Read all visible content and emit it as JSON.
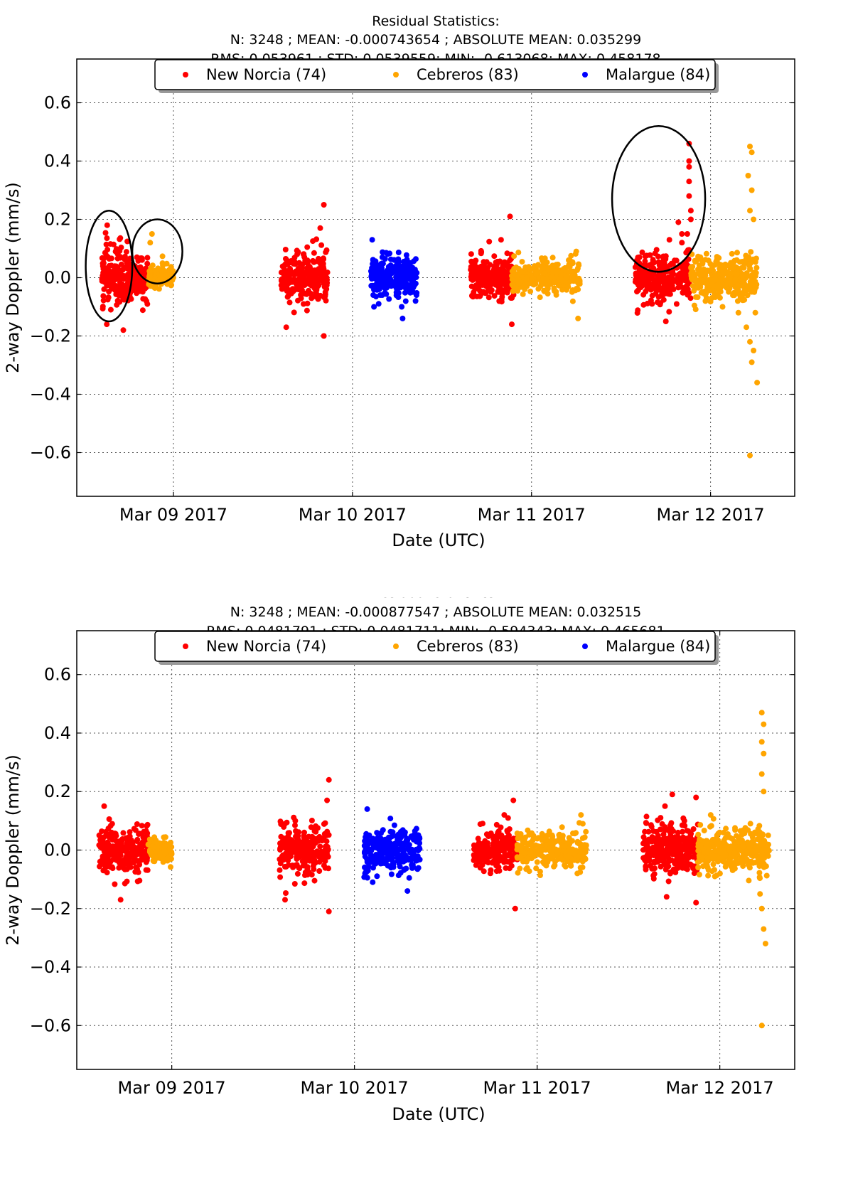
{
  "chart_data": [
    {
      "type": "scatter",
      "title_lines": [
        "Residual Statistics:",
        "N: 3248 ; MEAN: -0.000743654 ; ABSOLUTE MEAN: 0.035299",
        "RMS: 0.053961 ; STD: 0.0539559; MIN: -0.613068; MAX: 0.458178"
      ],
      "xlabel": "Date (UTC)",
      "ylabel": "2-way Doppler (mm/s)",
      "xlim": [
        8.46,
        12.47
      ],
      "ylim": [
        -0.75,
        0.75
      ],
      "x_ticks": [
        {
          "value": 9.0,
          "label": "Mar 09 2017"
        },
        {
          "value": 10.0,
          "label": "Mar 10 2017"
        },
        {
          "value": 11.0,
          "label": "Mar 11 2017"
        },
        {
          "value": 12.0,
          "label": "Mar 12 2017"
        }
      ],
      "y_ticks": [
        {
          "value": 0.6,
          "label": "0.6"
        },
        {
          "value": 0.4,
          "label": "0.4"
        },
        {
          "value": 0.2,
          "label": "0.2"
        },
        {
          "value": 0.0,
          "label": "0.0"
        },
        {
          "value": -0.2,
          "label": "−0.2"
        },
        {
          "value": -0.4,
          "label": "−0.4"
        },
        {
          "value": -0.6,
          "label": "−0.6"
        }
      ],
      "grid": true,
      "legend_position": "top-center",
      "series": [
        {
          "name": "New Norcia (74)",
          "color": "#ff0000",
          "clusters": [
            {
              "x0": 8.6,
              "x1": 8.77,
              "std": 0.05,
              "n": 170
            },
            {
              "x0": 8.77,
              "x1": 8.86,
              "std": 0.035,
              "n": 90
            },
            {
              "x0": 9.6,
              "x1": 9.86,
              "std": 0.045,
              "n": 230
            },
            {
              "x0": 10.66,
              "x1": 10.9,
              "std": 0.038,
              "n": 220
            },
            {
              "x0": 11.58,
              "x1": 11.89,
              "std": 0.045,
              "n": 290
            }
          ],
          "outliers": [
            {
              "x": 8.63,
              "y": 0.18
            },
            {
              "x": 8.72,
              "y": -0.18
            },
            {
              "x": 8.65,
              "y": -0.11
            },
            {
              "x": 9.84,
              "y": 0.25
            },
            {
              "x": 9.82,
              "y": 0.17
            },
            {
              "x": 9.63,
              "y": -0.17
            },
            {
              "x": 9.84,
              "y": -0.2
            },
            {
              "x": 10.88,
              "y": 0.21
            },
            {
              "x": 10.83,
              "y": 0.13
            },
            {
              "x": 10.89,
              "y": -0.16
            },
            {
              "x": 11.88,
              "y": 0.46
            },
            {
              "x": 11.88,
              "y": 0.4
            },
            {
              "x": 11.88,
              "y": 0.38
            },
            {
              "x": 11.88,
              "y": 0.33
            },
            {
              "x": 11.89,
              "y": 0.23
            },
            {
              "x": 11.89,
              "y": 0.2
            },
            {
              "x": 11.87,
              "y": 0.15
            },
            {
              "x": 11.82,
              "y": 0.19
            },
            {
              "x": 11.77,
              "y": 0.13
            },
            {
              "x": 11.84,
              "y": 0.15
            },
            {
              "x": 11.75,
              "y": -0.15
            },
            {
              "x": 11.88,
              "y": 0.28
            },
            {
              "x": 11.84,
              "y": 0.12
            }
          ]
        },
        {
          "name": "Cebreros (83)",
          "color": "#ffa500",
          "clusters": [
            {
              "x0": 8.86,
              "x1": 9.0,
              "std": 0.02,
              "n": 130
            },
            {
              "x0": 10.89,
              "x1": 11.27,
              "std": 0.03,
              "n": 280
            },
            {
              "x0": 11.89,
              "x1": 12.26,
              "std": 0.04,
              "n": 320
            }
          ],
          "outliers": [
            {
              "x": 8.88,
              "y": 0.15
            },
            {
              "x": 8.87,
              "y": 0.12
            },
            {
              "x": 11.26,
              "y": -0.14
            },
            {
              "x": 11.25,
              "y": 0.09
            },
            {
              "x": 12.22,
              "y": 0.45
            },
            {
              "x": 12.23,
              "y": 0.43
            },
            {
              "x": 12.21,
              "y": 0.35
            },
            {
              "x": 12.23,
              "y": 0.3
            },
            {
              "x": 12.22,
              "y": 0.23
            },
            {
              "x": 12.24,
              "y": 0.2
            },
            {
              "x": 12.22,
              "y": -0.22
            },
            {
              "x": 12.24,
              "y": -0.25
            },
            {
              "x": 12.23,
              "y": -0.29
            },
            {
              "x": 12.26,
              "y": -0.36
            },
            {
              "x": 12.22,
              "y": -0.61
            },
            {
              "x": 12.2,
              "y": -0.17
            },
            {
              "x": 12.25,
              "y": -0.12
            }
          ]
        },
        {
          "name": "Malargue (84)",
          "color": "#0000ff",
          "clusters": [
            {
              "x0": 10.1,
              "x1": 10.36,
              "std": 0.038,
              "n": 240
            }
          ],
          "outliers": [
            {
              "x": 10.11,
              "y": 0.13
            },
            {
              "x": 10.28,
              "y": -0.14
            },
            {
              "x": 10.12,
              "y": -0.1
            }
          ]
        }
      ],
      "annotations": [
        {
          "type": "ellipse",
          "cx": 8.64,
          "cy": 0.04,
          "rx": 0.13,
          "ry": 0.19
        },
        {
          "type": "ellipse",
          "cx": 8.91,
          "cy": 0.09,
          "rx": 0.14,
          "ry": 0.11
        },
        {
          "type": "ellipse",
          "cx": 11.71,
          "cy": 0.27,
          "rx": 0.26,
          "ry": 0.25
        }
      ]
    },
    {
      "type": "scatter",
      "title_lines": [
        "Residual Statistics:",
        "N: 3248 ; MEAN: -0.000877547 ; ABSOLUTE MEAN: 0.032515",
        "RMS: 0.0481791 ; STD: 0.0481711; MIN: -0.594343; MAX: 0.465681"
      ],
      "xlabel": "Date (UTC)",
      "ylabel": "2-way Doppler (mm/s)",
      "xlim": [
        8.48,
        12.41
      ],
      "ylim": [
        -0.75,
        0.75
      ],
      "x_ticks": [
        {
          "value": 9.0,
          "label": "Mar 09 2017"
        },
        {
          "value": 10.0,
          "label": "Mar 10 2017"
        },
        {
          "value": 11.0,
          "label": "Mar 11 2017"
        },
        {
          "value": 12.0,
          "label": "Mar 12 2017"
        }
      ],
      "y_ticks": [
        {
          "value": 0.6,
          "label": "0.6"
        },
        {
          "value": 0.4,
          "label": "0.4"
        },
        {
          "value": 0.2,
          "label": "0.2"
        },
        {
          "value": 0.0,
          "label": "0.0"
        },
        {
          "value": -0.2,
          "label": "−0.2"
        },
        {
          "value": -0.4,
          "label": "−0.4"
        },
        {
          "value": -0.6,
          "label": "−0.6"
        }
      ],
      "grid": true,
      "legend_position": "top-center",
      "series": [
        {
          "name": "New Norcia (74)",
          "color": "#ff0000",
          "clusters": [
            {
              "x0": 8.6,
              "x1": 8.87,
              "std": 0.04,
              "n": 240
            },
            {
              "x0": 9.59,
              "x1": 9.86,
              "std": 0.042,
              "n": 230
            },
            {
              "x0": 10.65,
              "x1": 10.9,
              "std": 0.035,
              "n": 220
            },
            {
              "x0": 11.58,
              "x1": 11.88,
              "std": 0.042,
              "n": 280
            }
          ],
          "outliers": [
            {
              "x": 8.63,
              "y": 0.15
            },
            {
              "x": 8.72,
              "y": -0.17
            },
            {
              "x": 9.86,
              "y": 0.24
            },
            {
              "x": 9.85,
              "y": 0.17
            },
            {
              "x": 9.62,
              "y": -0.17
            },
            {
              "x": 9.86,
              "y": -0.21
            },
            {
              "x": 10.87,
              "y": 0.17
            },
            {
              "x": 10.88,
              "y": -0.2
            },
            {
              "x": 10.82,
              "y": 0.12
            },
            {
              "x": 11.74,
              "y": 0.19
            },
            {
              "x": 11.87,
              "y": 0.18
            },
            {
              "x": 11.87,
              "y": -0.18
            },
            {
              "x": 11.7,
              "y": 0.15
            }
          ]
        },
        {
          "name": "Cebreros (83)",
          "color": "#ffa500",
          "clusters": [
            {
              "x0": 8.87,
              "x1": 9.0,
              "std": 0.018,
              "n": 130
            },
            {
              "x0": 10.89,
              "x1": 11.27,
              "std": 0.03,
              "n": 270
            },
            {
              "x0": 11.88,
              "x1": 12.27,
              "std": 0.038,
              "n": 320
            }
          ],
          "outliers": [
            {
              "x": 11.24,
              "y": 0.12
            },
            {
              "x": 11.25,
              "y": 0.09
            },
            {
              "x": 11.22,
              "y": -0.08
            },
            {
              "x": 12.23,
              "y": 0.47
            },
            {
              "x": 12.24,
              "y": 0.43
            },
            {
              "x": 12.23,
              "y": 0.37
            },
            {
              "x": 12.24,
              "y": 0.33
            },
            {
              "x": 12.23,
              "y": 0.26
            },
            {
              "x": 12.24,
              "y": 0.2
            },
            {
              "x": 12.23,
              "y": -0.2
            },
            {
              "x": 12.24,
              "y": -0.27
            },
            {
              "x": 12.25,
              "y": -0.32
            },
            {
              "x": 12.23,
              "y": -0.6
            },
            {
              "x": 12.22,
              "y": -0.15
            },
            {
              "x": 11.95,
              "y": 0.12
            }
          ]
        },
        {
          "name": "Malargue (84)",
          "color": "#0000ff",
          "clusters": [
            {
              "x0": 10.05,
              "x1": 10.36,
              "std": 0.04,
              "n": 250
            }
          ],
          "outliers": [
            {
              "x": 10.07,
              "y": 0.14
            },
            {
              "x": 10.29,
              "y": -0.14
            },
            {
              "x": 10.1,
              "y": -0.11
            }
          ]
        }
      ],
      "annotations": []
    }
  ]
}
